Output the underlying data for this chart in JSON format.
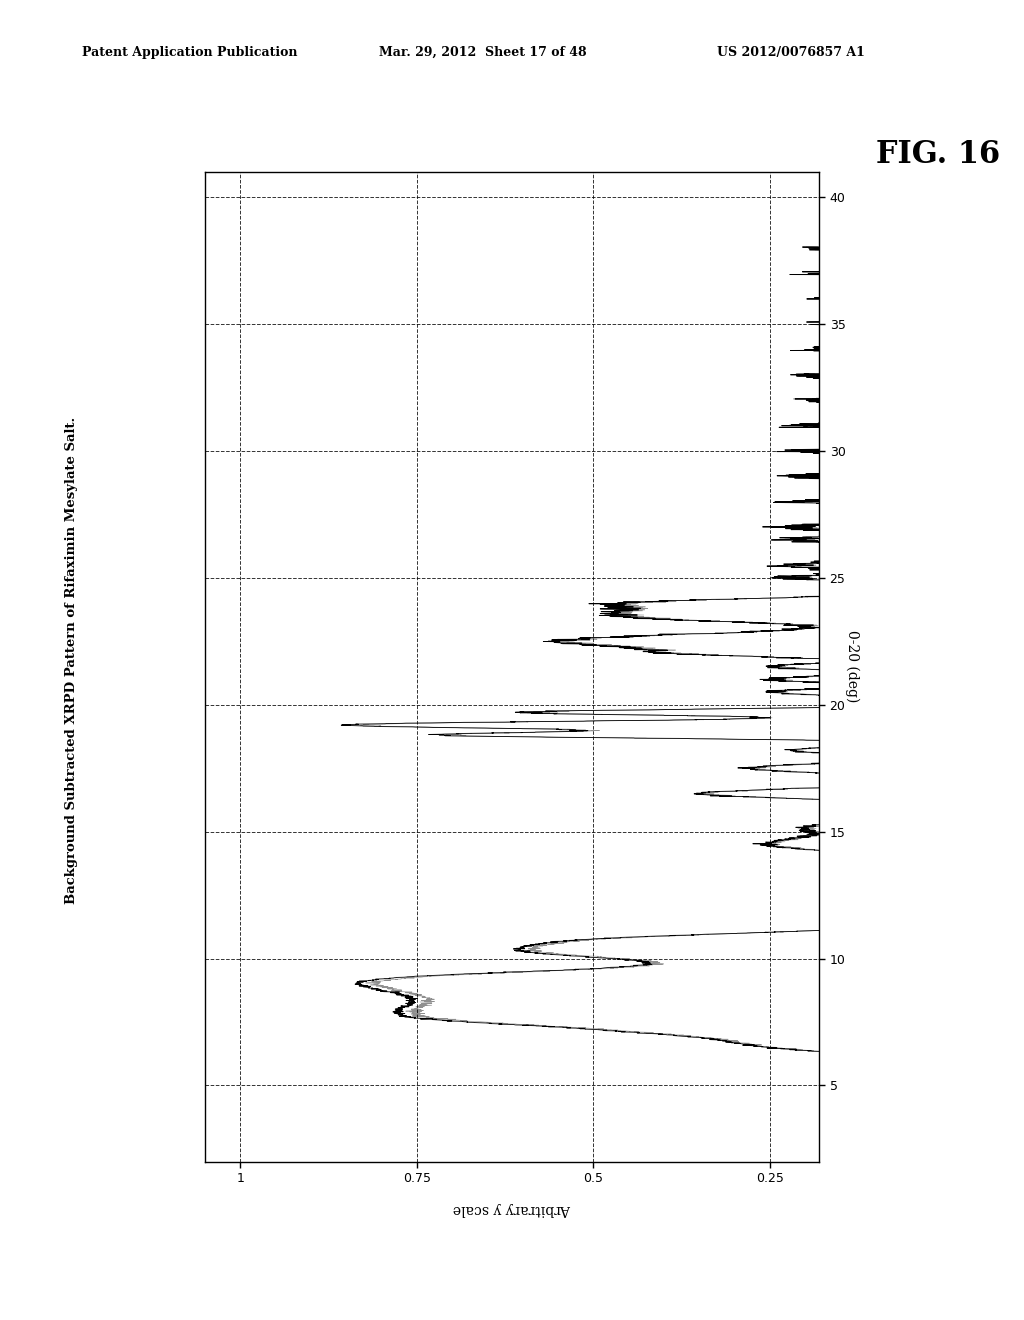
{
  "title": "Background Subtracted XRPD Pattern of Rifaximin Mesylate Salt.",
  "xlabel_bottom": "Arbitrary y scale",
  "ylabel_right": "0-20 (deg)",
  "fig_label": "FIG. 16",
  "header_left": "Patent Application Publication",
  "header_center": "Mar. 29, 2012  Sheet 17 of 48",
  "header_right": "US 2012/0076857 A1",
  "theta_min": 2,
  "theta_max": 41,
  "int_min": -0.05,
  "int_max": 1.02,
  "yticks_theta": [
    5,
    10,
    15,
    20,
    25,
    30,
    35,
    40
  ],
  "xticks_int": [
    1,
    0.75,
    0.5,
    0.25
  ],
  "xlim_left": 1.05,
  "xlim_right": 0.18,
  "background_color": "#ffffff",
  "line_color": "#000000",
  "grid_color": "#000000"
}
